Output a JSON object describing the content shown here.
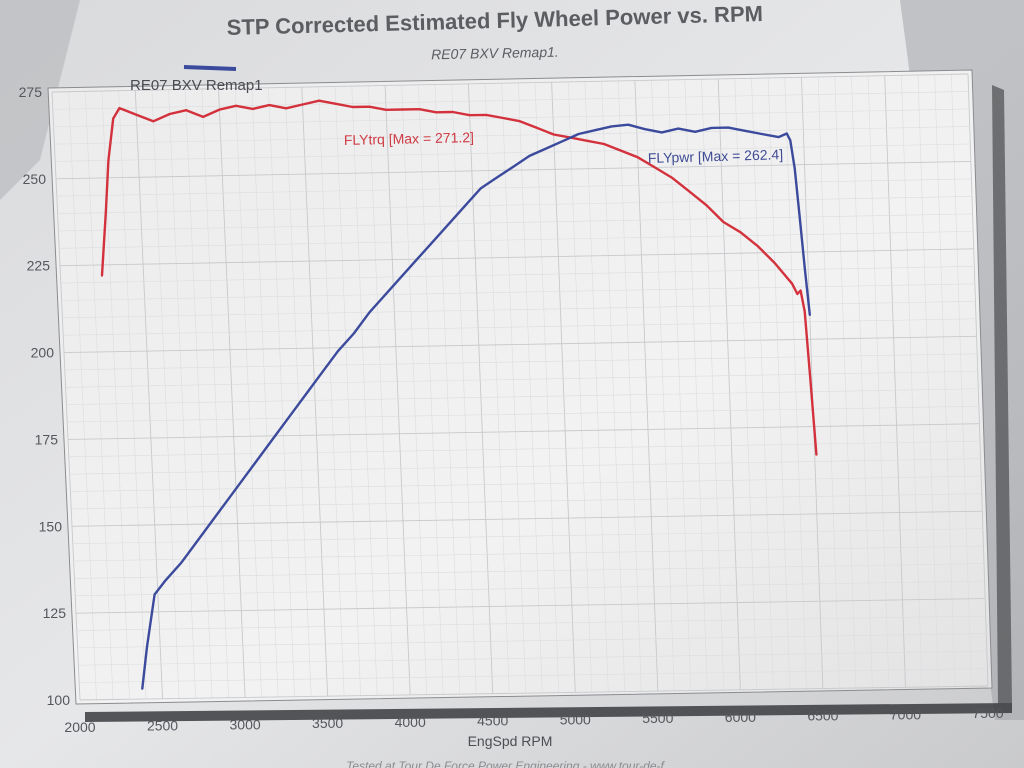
{
  "chart_data": {
    "type": "line",
    "title": "STP Corrected Estimated Fly Wheel Power vs. RPM",
    "subtitle": "RE07 BXV Remap1.",
    "legend": {
      "entries": [
        "RE07 BXV Remap1"
      ],
      "color": "#3b4a9c",
      "placement": "top-left"
    },
    "xlabel": "EngSpd RPM",
    "ylabel": "",
    "xlim": [
      2000,
      7500
    ],
    "ylim": [
      100,
      275
    ],
    "x_ticks": [
      "2000",
      "2500",
      "3000",
      "3500",
      "4000",
      "4500",
      "5000",
      "5500",
      "6000",
      "6500",
      "7000",
      "7500"
    ],
    "y_ticks": [
      "100",
      "125",
      "150",
      "175",
      "200",
      "225",
      "250",
      "275"
    ],
    "grid": true,
    "series": [
      {
        "name": "FLYtrq",
        "color": "#d3313c",
        "annotation": "FLYtrq [Max = 271.2]",
        "x": [
          2250,
          2290,
          2320,
          2360,
          2400,
          2500,
          2600,
          2700,
          2800,
          2900,
          3000,
          3100,
          3200,
          3300,
          3400,
          3500,
          3600,
          3700,
          3800,
          3900,
          4000,
          4100,
          4200,
          4300,
          4400,
          4500,
          4600,
          4700,
          4800,
          4900,
          5000,
          5100,
          5200,
          5300,
          5400,
          5500,
          5600,
          5700,
          5800,
          5900,
          6000,
          6100,
          6200,
          6300,
          6400,
          6430,
          6450,
          6470,
          6490,
          6510
        ],
        "values": [
          222,
          240,
          255,
          267,
          270,
          268,
          266,
          268,
          269,
          267,
          269,
          270,
          269,
          270,
          269,
          270,
          271,
          270,
          269,
          269,
          268,
          268,
          268,
          267,
          267,
          266,
          266,
          265,
          264,
          262,
          260,
          259,
          258,
          257,
          255,
          253,
          250,
          247,
          243,
          239,
          234,
          231,
          227,
          222,
          216,
          213,
          214,
          208,
          188,
          167
        ]
      },
      {
        "name": "FLYpwr",
        "color": "#3b4a9c",
        "annotation": "FLYpwr [Max = 262.4]",
        "x": [
          2380,
          2420,
          2480,
          2550,
          2650,
          2750,
          2850,
          2950,
          3050,
          3150,
          3250,
          3350,
          3450,
          3550,
          3650,
          3750,
          3850,
          3950,
          4050,
          4150,
          4250,
          4350,
          4450,
          4550,
          4650,
          4750,
          4850,
          4950,
          5050,
          5150,
          5250,
          5350,
          5450,
          5550,
          5650,
          5750,
          5850,
          5950,
          6050,
          6150,
          6250,
          6350,
          6400,
          6420,
          6440,
          6460,
          6480,
          6500
        ],
        "values": [
          103,
          115,
          130,
          134,
          139,
          145,
          151,
          157,
          163,
          169,
          175,
          181,
          187,
          193,
          199,
          204,
          210,
          215,
          220,
          225,
          230,
          235,
          240,
          245,
          248,
          251,
          254,
          256,
          258,
          260,
          261,
          262,
          262.4,
          261,
          260,
          261,
          260,
          261,
          261,
          260,
          259,
          258,
          259,
          257,
          249,
          235,
          220,
          207
        ]
      }
    ]
  },
  "footer": "Tested at Tour De Force Power Engineering - www.tour-de-f"
}
